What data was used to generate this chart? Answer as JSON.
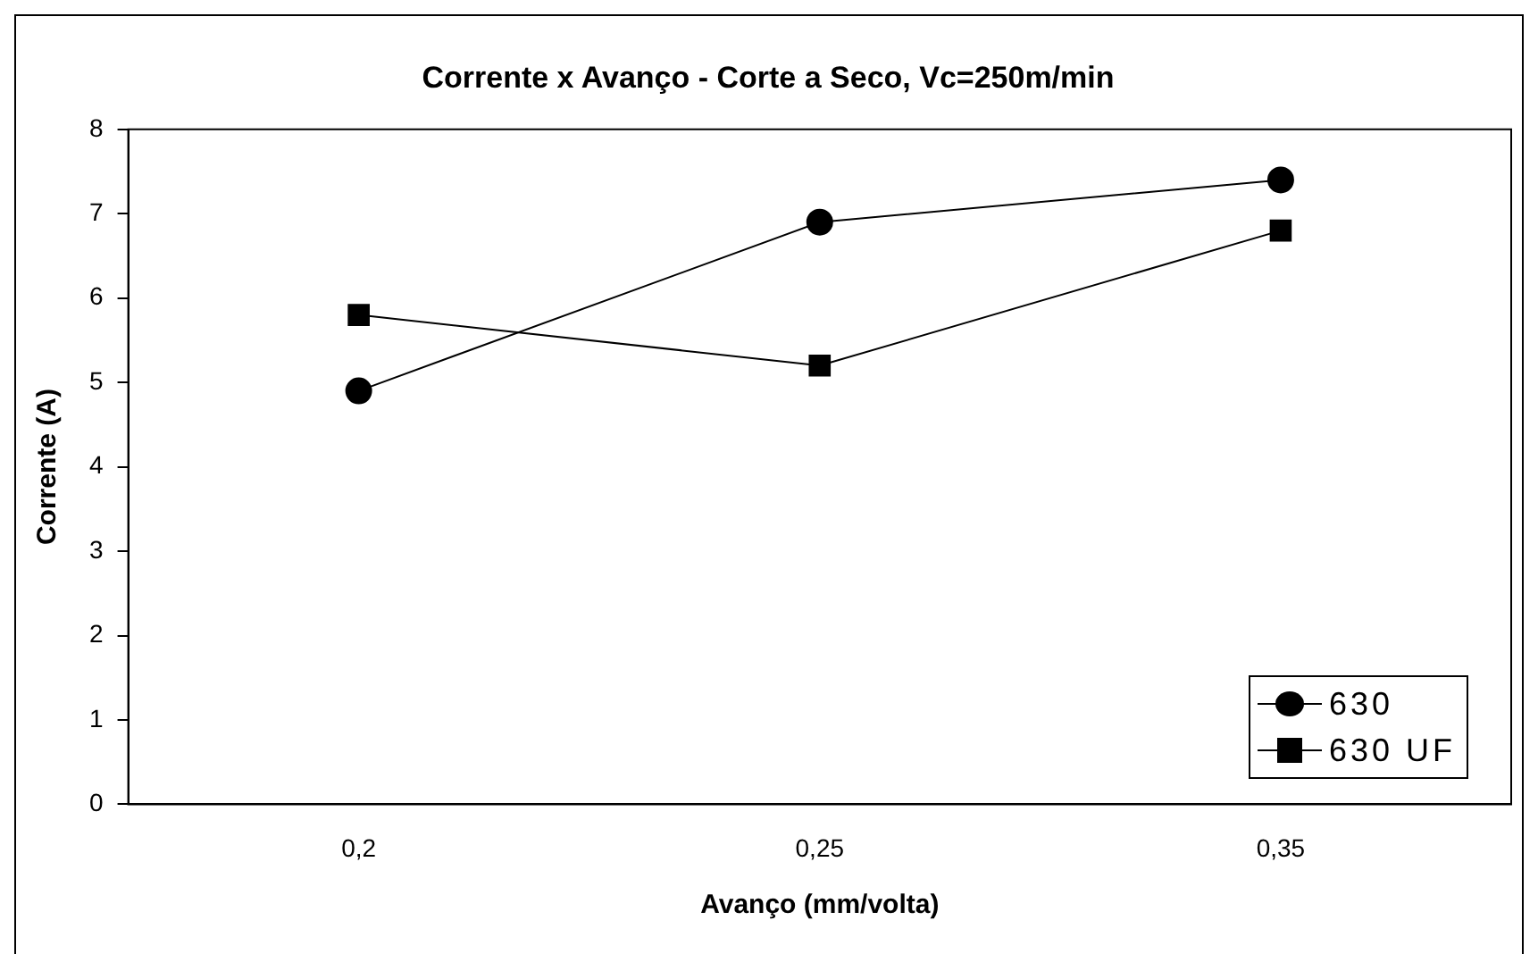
{
  "chart_data": {
    "type": "line",
    "title": "Corrente x Avanço - Corte a Seco, Vc=250m/min",
    "xlabel": "Avanço (mm/volta)",
    "ylabel": "Corrente (A)",
    "categories": [
      "0,2",
      "0,25",
      "0,35"
    ],
    "series": [
      {
        "name": "630",
        "color": "#000000",
        "marker": "circle",
        "values": [
          4.9,
          6.9,
          7.4
        ]
      },
      {
        "name": "630 UF",
        "color": "#000000",
        "marker": "square",
        "values": [
          5.8,
          5.2,
          6.8
        ]
      }
    ],
    "ylim": [
      0,
      8
    ],
    "yticks": [
      0,
      1,
      2,
      3,
      4,
      5,
      6,
      7,
      8
    ],
    "grid": false,
    "legend": "bottom right",
    "line_style": "solid"
  }
}
